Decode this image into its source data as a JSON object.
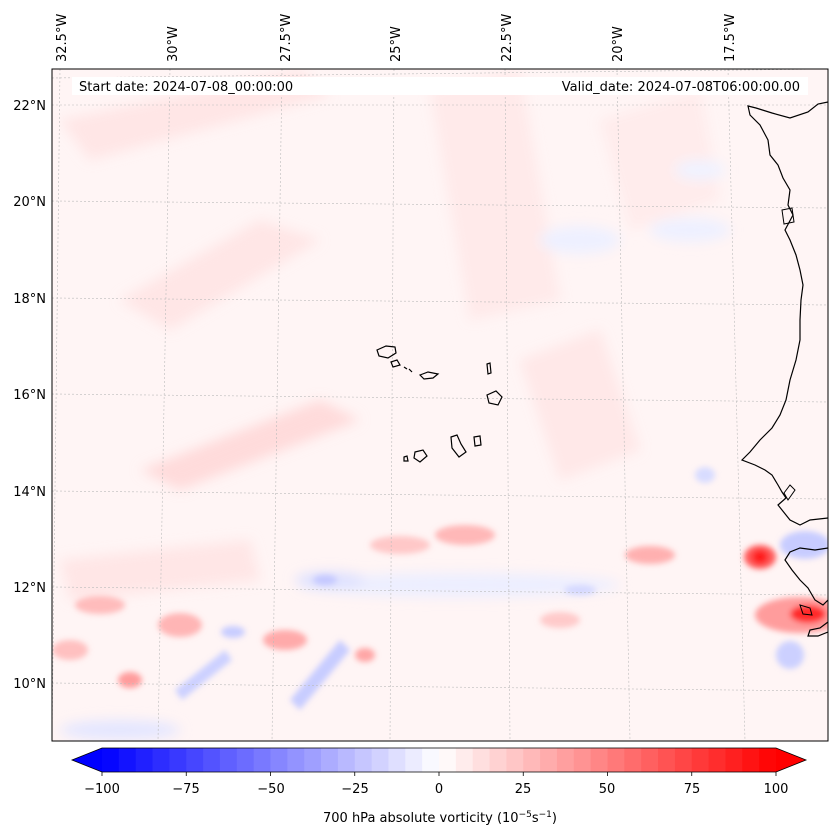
{
  "map": {
    "start_date": "Start date: 2024-07-08_00:00:00",
    "valid_date": "Valid_date: 2024-07-08T06:00:00.00",
    "lon_labels": [
      "32.5°W",
      "30°W",
      "27.5°W",
      "25°W",
      "22.5°W",
      "20°W",
      "17.5°W"
    ],
    "lat_labels": [
      "22°N",
      "20°N",
      "18°N",
      "16°N",
      "14°N",
      "12°N",
      "10°N"
    ],
    "islands": [
      "Santo Antão",
      "São Vicente",
      "São Nicolau",
      "Sal",
      "Boa Vista",
      "Maio",
      "Santiago",
      "Fogo",
      "Brava"
    ],
    "colors": {
      "coast": "#000000",
      "grid": "#b8b8b8",
      "positive": "#ff0000",
      "negative": "#0000ff",
      "background": "#fff5f5"
    }
  },
  "colorbar": {
    "ticks": [
      "−100",
      "−75",
      "−50",
      "−25",
      "0",
      "25",
      "50",
      "75",
      "100"
    ],
    "min": -100,
    "max": 100,
    "step": 5,
    "label_prefix": "700 hPa absolute vorticity (10",
    "label_exp1": "−5",
    "label_mid": "s",
    "label_exp2": "−1",
    "label_suffix": ")"
  }
}
